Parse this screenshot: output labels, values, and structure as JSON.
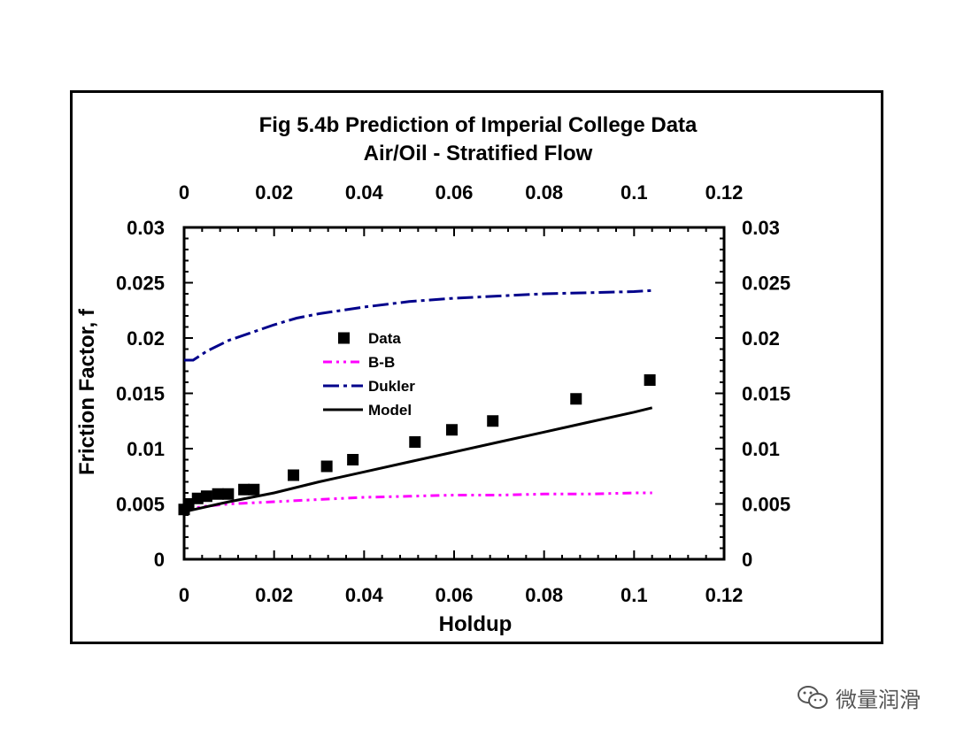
{
  "chart_data": {
    "type": "line",
    "title": [
      "Fig 5.4b Prediction of Imperial College Data",
      "Air/Oil - Stratified Flow"
    ],
    "xlabel": "Holdup",
    "ylabel": "Friction Factor, f",
    "xlim": [
      0,
      0.12
    ],
    "ylim": [
      0,
      0.03
    ],
    "x_ticks": [
      "0",
      "0.02",
      "0.04",
      "0.06",
      "0.08",
      "0.1",
      "0.12"
    ],
    "y_ticks": [
      "0",
      "0.005",
      "0.01",
      "0.015",
      "0.02",
      "0.025",
      "0.03"
    ],
    "legend_position": "center-left",
    "series": [
      {
        "name": "Data",
        "style": "marker",
        "marker": "square",
        "color": "#000000",
        "x": [
          0.0,
          0.001,
          0.003,
          0.005,
          0.0075,
          0.0098,
          0.0133,
          0.0155,
          0.0243,
          0.0317,
          0.0375,
          0.0513,
          0.0595,
          0.0686,
          0.0871,
          0.1035
        ],
        "y": [
          0.0045,
          0.005,
          0.0055,
          0.0057,
          0.0059,
          0.0059,
          0.0063,
          0.0063,
          0.0076,
          0.0084,
          0.009,
          0.0106,
          0.0117,
          0.0125,
          0.0145,
          0.0162
        ]
      },
      {
        "name": "B-B",
        "style": "dashdotdot",
        "color": "#ff00ff",
        "x": [
          0.0,
          0.005,
          0.01,
          0.02,
          0.03,
          0.04,
          0.05,
          0.06,
          0.07,
          0.08,
          0.09,
          0.1,
          0.104
        ],
        "y": [
          0.0045,
          0.0048,
          0.005,
          0.0052,
          0.0054,
          0.0056,
          0.0057,
          0.0058,
          0.0058,
          0.0059,
          0.0059,
          0.006,
          0.006
        ]
      },
      {
        "name": "Dukler",
        "style": "dashdot",
        "color": "#00008b",
        "x": [
          0.0,
          0.002,
          0.005,
          0.01,
          0.015,
          0.02,
          0.025,
          0.03,
          0.04,
          0.05,
          0.06,
          0.07,
          0.08,
          0.09,
          0.1,
          0.104
        ],
        "y": [
          0.018,
          0.018,
          0.0188,
          0.0198,
          0.0205,
          0.0212,
          0.0218,
          0.0222,
          0.0228,
          0.0233,
          0.0236,
          0.0238,
          0.024,
          0.0241,
          0.0242,
          0.0243
        ]
      },
      {
        "name": "Model",
        "style": "solid",
        "color": "#000000",
        "x": [
          0.0,
          0.01,
          0.02,
          0.03,
          0.04,
          0.05,
          0.06,
          0.07,
          0.08,
          0.09,
          0.1,
          0.104
        ],
        "y": [
          0.0043,
          0.0052,
          0.006,
          0.007,
          0.0079,
          0.0088,
          0.0097,
          0.0106,
          0.0115,
          0.0124,
          0.0133,
          0.0137
        ]
      }
    ]
  },
  "watermark": {
    "text": "微量润滑",
    "icon": "chat-bubbles-icon",
    "color": "#555555"
  }
}
